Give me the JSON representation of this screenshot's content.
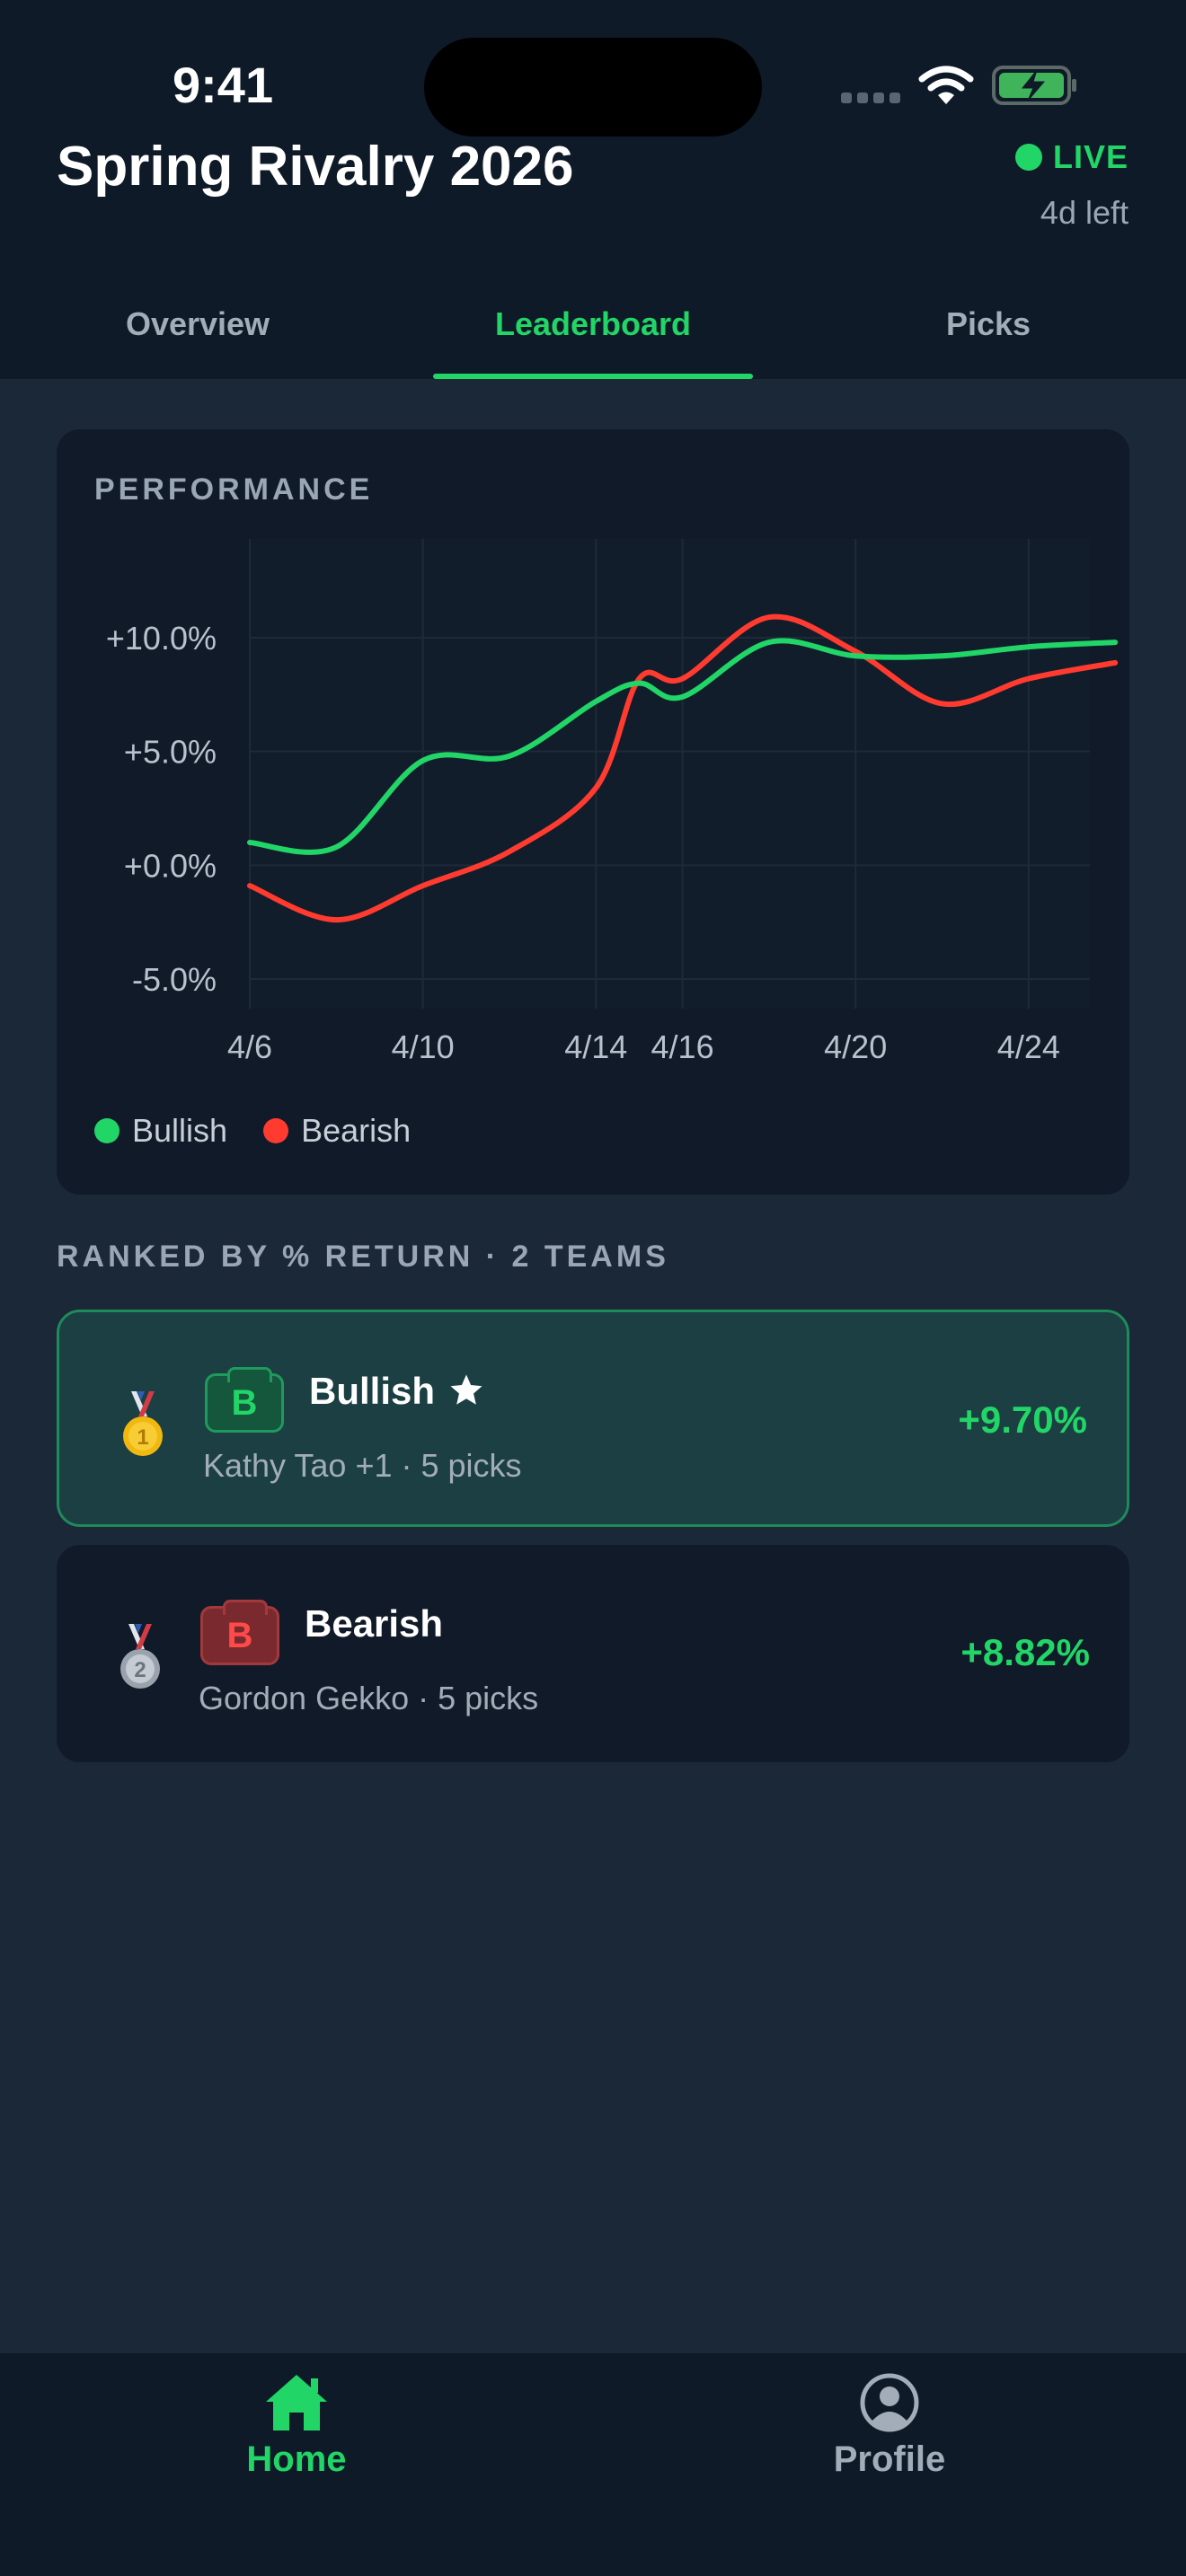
{
  "status_bar": {
    "time": "9:41"
  },
  "header": {
    "title": "Spring Rivalry 2026",
    "live_label": "LIVE",
    "time_left": "4d left"
  },
  "tabs": [
    {
      "label": "Overview",
      "active": false
    },
    {
      "label": "Leaderboard",
      "active": true
    },
    {
      "label": "Picks",
      "active": false
    }
  ],
  "performance": {
    "section_label": "PERFORMANCE",
    "legend": [
      {
        "name": "Bullish",
        "color": "#22d567"
      },
      {
        "name": "Bearish",
        "color": "#ff3b30"
      }
    ]
  },
  "chart_data": {
    "type": "line",
    "x": [
      "4/6",
      "4/8",
      "4/10",
      "4/12",
      "4/14",
      "4/15",
      "4/16",
      "4/18",
      "4/20",
      "4/22",
      "4/24",
      "4/26"
    ],
    "x_ticks": [
      "4/6",
      "4/10",
      "4/14",
      "4/16",
      "4/20",
      "4/24"
    ],
    "y_ticks": [
      "+10.0%",
      "+5.0%",
      "+0.0%",
      "-5.0%"
    ],
    "y_tick_values": [
      10,
      5,
      0,
      -5
    ],
    "ylim": [
      -5,
      14
    ],
    "series": [
      {
        "name": "Bullish",
        "color": "#22d567",
        "values": [
          1.0,
          0.8,
          4.6,
          4.8,
          7.2,
          8.0,
          7.4,
          9.8,
          9.2,
          9.2,
          9.6,
          9.8
        ]
      },
      {
        "name": "Bearish",
        "color": "#ff3b30",
        "values": [
          -0.9,
          -2.4,
          -0.9,
          0.6,
          3.4,
          8.2,
          8.2,
          10.9,
          9.4,
          7.1,
          8.2,
          8.9
        ]
      }
    ],
    "grid": true,
    "legend_position": "bottom-left"
  },
  "leaderboard": {
    "ranked_label": "RANKED BY % RETURN · 2 TEAMS",
    "teams": [
      {
        "rank": "1",
        "badge": "B",
        "name": "Bullish",
        "meta": "Kathy Tao +1 · 5 picks",
        "return": "+9.70%",
        "starred": true
      },
      {
        "rank": "2",
        "badge": "B",
        "name": "Bearish",
        "meta": "Gordon Gekko · 5 picks",
        "return": "+8.82%",
        "starred": false
      }
    ]
  },
  "bottom_nav": [
    {
      "label": "Home",
      "icon": "home-icon",
      "active": true
    },
    {
      "label": "Profile",
      "icon": "profile-icon",
      "active": false
    }
  ]
}
